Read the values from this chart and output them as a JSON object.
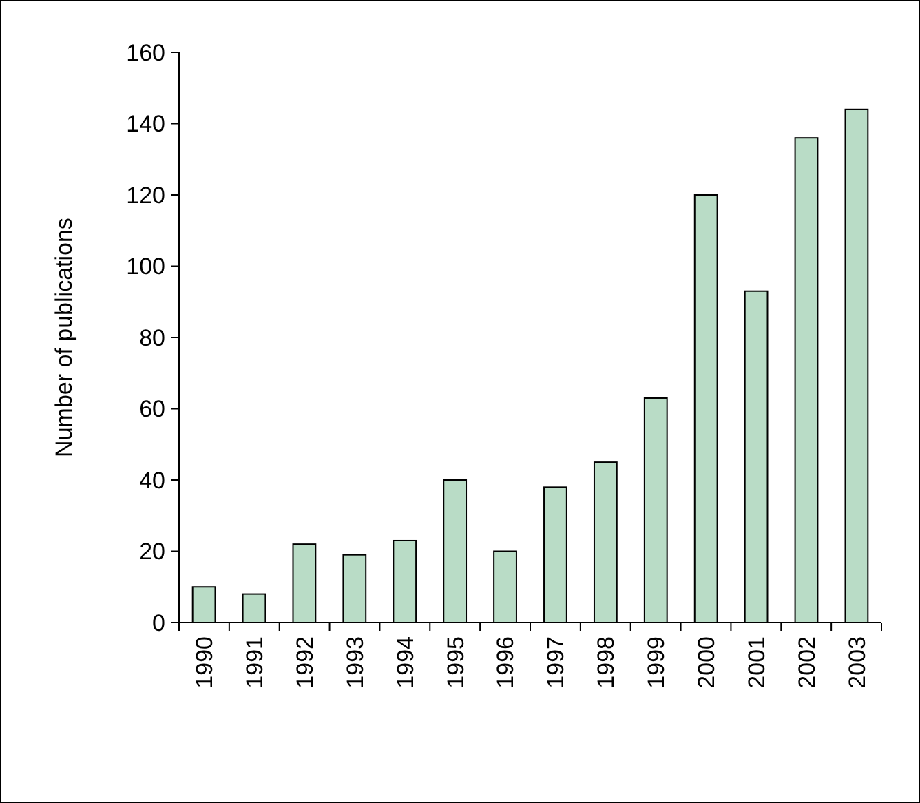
{
  "chart_data": {
    "type": "bar",
    "ylabel": "Number of publications",
    "categories": [
      "1990",
      "1991",
      "1992",
      "1993",
      "1994",
      "1995",
      "1996",
      "1997",
      "1998",
      "1999",
      "2000",
      "2001",
      "2002",
      "2003"
    ],
    "values": [
      10,
      8,
      22,
      19,
      23,
      40,
      20,
      38,
      45,
      63,
      120,
      93,
      136,
      144
    ],
    "color": "#b9dcc6",
    "ylim": [
      0,
      160
    ],
    "yticks": [
      0,
      20,
      40,
      60,
      80,
      100,
      120,
      140,
      160
    ],
    "grid": false
  }
}
